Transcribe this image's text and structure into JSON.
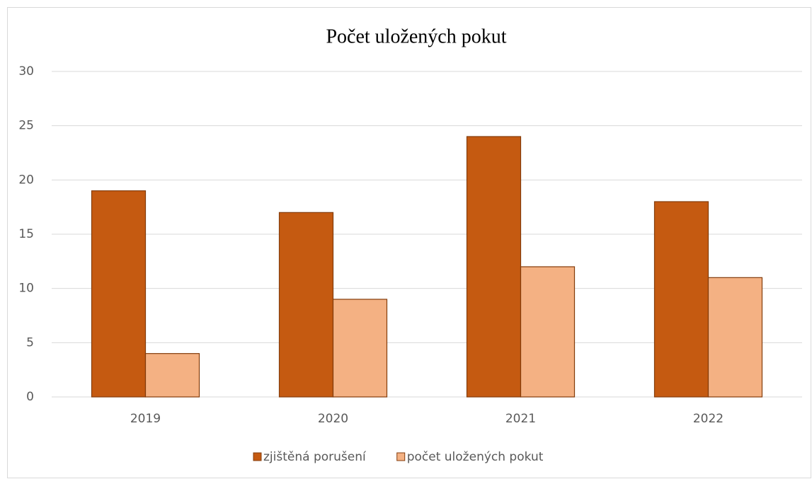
{
  "chart_data": {
    "type": "bar",
    "title": "Počet uložených pokut",
    "categories": [
      "2019",
      "2020",
      "2021",
      "2022"
    ],
    "series": [
      {
        "name": "zjištěná porušení",
        "color": "#c55a11",
        "values": [
          19,
          17,
          24,
          18
        ]
      },
      {
        "name": "počet uložených pokut",
        "color": "#f4b183",
        "values": [
          4,
          9,
          12,
          11
        ]
      }
    ],
    "ylim": [
      0,
      30
    ],
    "yticks": [
      0,
      5,
      10,
      15,
      20,
      25,
      30
    ],
    "grid": true,
    "legend": "bottom"
  }
}
